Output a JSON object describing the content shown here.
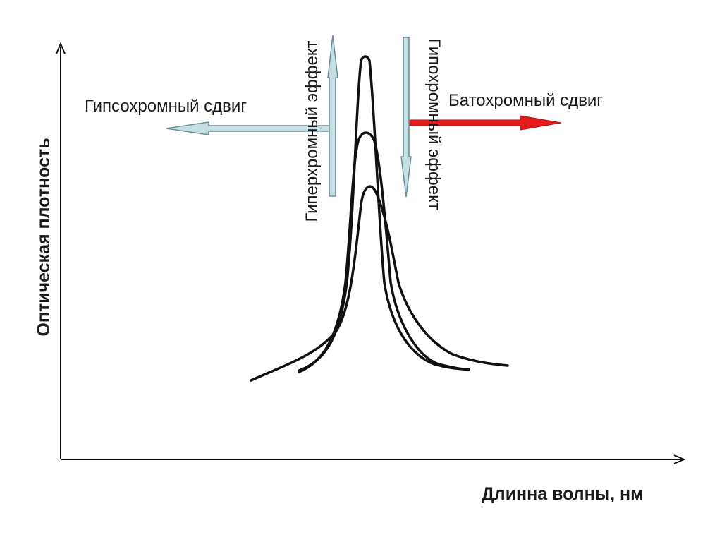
{
  "axes": {
    "x_label": "Длинна волны, нм",
    "y_label": "Оптическая плотность"
  },
  "annotations": {
    "hypsochromic_shift": "Гипсохромный сдвиг",
    "bathochromic_shift": "Батохромный сдвиг",
    "hyperchromic_effect": "Гиперхромный эффект",
    "hypochromic_effect": "Гипохромный эффект"
  },
  "colors": {
    "curve": "#111111",
    "axis": "#111111",
    "light_arrow_fill": "#c5dfe3",
    "light_arrow_stroke": "#6a8e96",
    "red_arrow": "#e31b1b"
  },
  "icons": {
    "hypsochromic_arrow": "arrow-left-icon",
    "bathochromic_arrow": "arrow-right-icon",
    "hyperchromic_arrow": "arrow-up-icon",
    "hypochromic_arrow": "arrow-down-icon"
  }
}
